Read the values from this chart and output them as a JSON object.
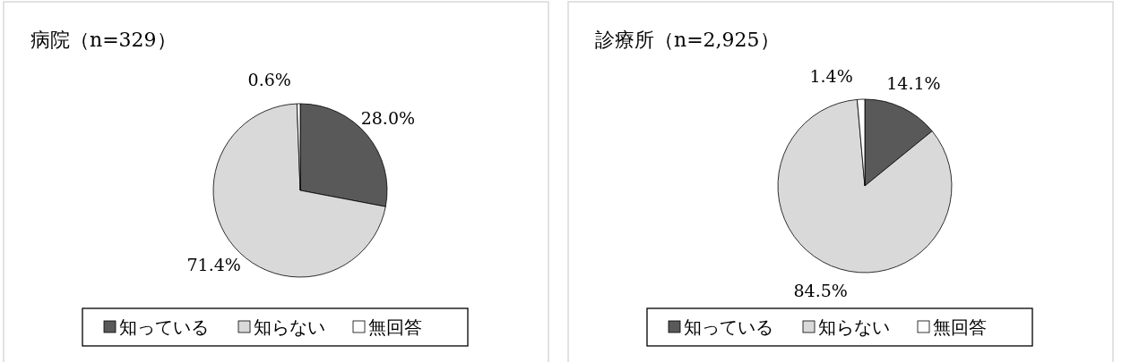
{
  "chart_data": [
    {
      "type": "pie",
      "title": "病院（n=329）",
      "categories": [
        "知っている",
        "知らない",
        "無回答"
      ],
      "values": [
        28.0,
        71.4,
        0.6
      ],
      "colors": [
        "#595959",
        "#d9d9d9",
        "#ffffff"
      ],
      "value_labels": [
        "28.0%",
        "71.4%",
        "0.6%"
      ],
      "legend": "bottom"
    },
    {
      "type": "pie",
      "title": "診療所（n=2,925）",
      "categories": [
        "知っている",
        "知らない",
        "無回答"
      ],
      "values": [
        14.1,
        84.5,
        1.4
      ],
      "colors": [
        "#595959",
        "#d9d9d9",
        "#ffffff"
      ],
      "value_labels": [
        "14.1%",
        "84.5%",
        "1.4%"
      ],
      "legend": "bottom"
    }
  ]
}
